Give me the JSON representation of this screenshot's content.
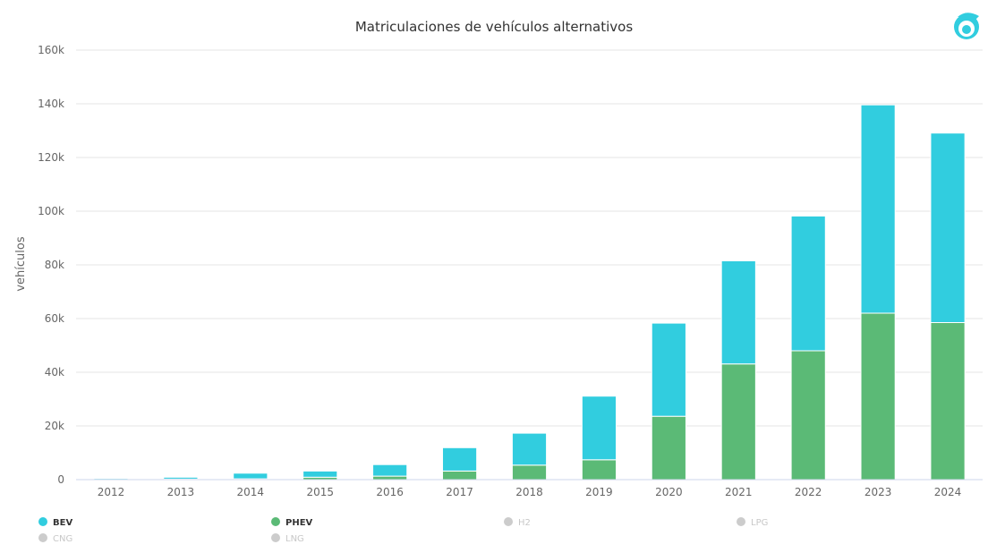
{
  "chart_data": {
    "type": "bar",
    "stacked": true,
    "title": "Matriculaciones de vehículos alternativos",
    "ylabel": "vehículos",
    "xlabel": "",
    "ylim": [
      0,
      160000
    ],
    "y_ticks": [
      {
        "value": 0,
        "label": "0"
      },
      {
        "value": 20000,
        "label": "20k"
      },
      {
        "value": 40000,
        "label": "40k"
      },
      {
        "value": 60000,
        "label": "60k"
      },
      {
        "value": 80000,
        "label": "80k"
      },
      {
        "value": 100000,
        "label": "100k"
      },
      {
        "value": 120000,
        "label": "120k"
      },
      {
        "value": 140000,
        "label": "140k"
      },
      {
        "value": 160000,
        "label": "160k"
      }
    ],
    "categories": [
      "2012",
      "2013",
      "2014",
      "2015",
      "2016",
      "2017",
      "2018",
      "2019",
      "2020",
      "2021",
      "2022",
      "2023",
      "2024"
    ],
    "series": [
      {
        "name": "PHEV",
        "color": "#5bba76",
        "values": [
          100,
          200,
          300,
          900,
          1300,
          3200,
          5400,
          7400,
          23600,
          43100,
          48000,
          62000,
          58500
        ]
      },
      {
        "name": "BEV",
        "color": "#31cddf",
        "values": [
          400,
          700,
          2100,
          2300,
          4300,
          8700,
          11900,
          23700,
          34700,
          38400,
          50200,
          77600,
          70600
        ]
      }
    ],
    "grid": true,
    "legend_position": "bottom-left",
    "legend": [
      {
        "name": "BEV",
        "color": "#31cddf",
        "active": true
      },
      {
        "name": "PHEV",
        "color": "#5bba76",
        "active": true
      },
      {
        "name": "H2",
        "color": "#cccccc",
        "active": false
      },
      {
        "name": "LPG",
        "color": "#cccccc",
        "active": false
      },
      {
        "name": "CNG",
        "color": "#cccccc",
        "active": false
      },
      {
        "name": "LNG",
        "color": "#cccccc",
        "active": false
      }
    ]
  },
  "logo": {
    "name": "logo-icon",
    "color": "#31cddf"
  }
}
